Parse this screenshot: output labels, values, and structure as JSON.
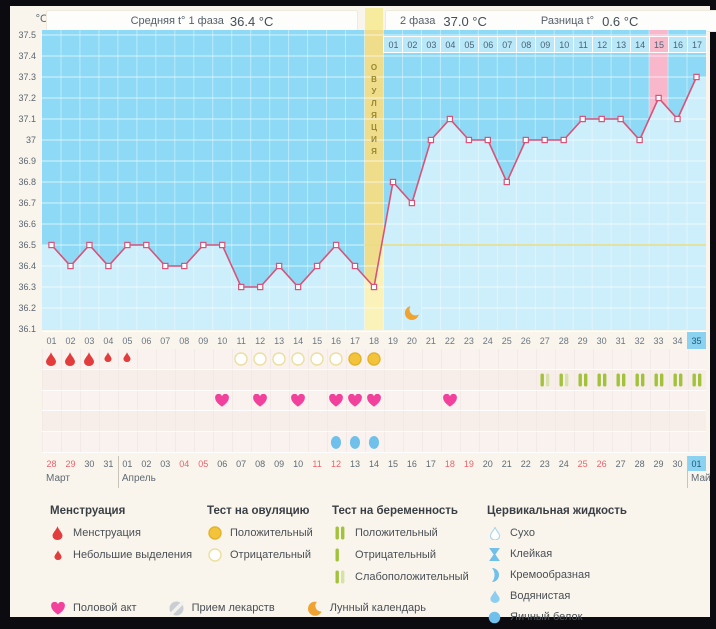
{
  "header": {
    "unit": "°C",
    "avg1_label": "Средняя t° 1 фаза",
    "avg1_value": "36.4 °C",
    "phase2_label": "2 фаза",
    "phase2_value": "37.0 °C",
    "diff_label": "Разница t°",
    "diff_value": "0.6 °C"
  },
  "chart_data": {
    "type": "line",
    "title": "Basal body temperature cycle chart",
    "ylabel": "°C",
    "ylim": [
      36.1,
      37.5
    ],
    "yticks": [
      "37.5",
      "37.4",
      "37.3",
      "37.2",
      "37.1",
      "37",
      "36.9",
      "36.8",
      "36.7",
      "36.6",
      "36.5",
      "36.4",
      "36.3",
      "36.2",
      "36.1"
    ],
    "categories": [
      "01",
      "02",
      "03",
      "04",
      "05",
      "06",
      "07",
      "08",
      "09",
      "10",
      "11",
      "12",
      "13",
      "14",
      "15",
      "16",
      "17",
      "18",
      "19",
      "20",
      "21",
      "22",
      "23",
      "24",
      "25",
      "26",
      "27",
      "28",
      "29",
      "30",
      "31",
      "32",
      "33",
      "34",
      "35"
    ],
    "values": [
      36.5,
      36.4,
      36.5,
      36.4,
      36.5,
      36.5,
      36.4,
      36.4,
      36.5,
      36.5,
      36.3,
      36.3,
      36.4,
      36.3,
      36.4,
      36.5,
      36.4,
      36.3,
      36.8,
      36.7,
      37.0,
      37.1,
      37.0,
      37.0,
      36.8,
      37.0,
      37.0,
      37.0,
      37.1,
      37.1,
      37.1,
      37.0,
      37.2,
      37.1,
      37.3
    ],
    "phase2_day_labels": [
      "01",
      "02",
      "03",
      "04",
      "05",
      "06",
      "07",
      "08",
      "09",
      "10",
      "11",
      "12",
      "13",
      "14",
      "15",
      "16",
      "17"
    ],
    "ovulation_day": 18,
    "ovulation_label": "ОВУЛЯЦИЯ",
    "highlighted_phase2_label": "15",
    "highlighted_cycle_day": 33,
    "coverline": 36.5,
    "moon_day": 20,
    "today_day": 35,
    "grid": true
  },
  "symbols": {
    "menstruation": [
      {
        "day": 1,
        "size": "large"
      },
      {
        "day": 2,
        "size": "large"
      },
      {
        "day": 3,
        "size": "large"
      },
      {
        "day": 4,
        "size": "small"
      },
      {
        "day": 5,
        "size": "small"
      }
    ],
    "ovulation_tests": [
      {
        "day": 11,
        "result": "negative"
      },
      {
        "day": 12,
        "result": "negative"
      },
      {
        "day": 13,
        "result": "negative"
      },
      {
        "day": 14,
        "result": "negative"
      },
      {
        "day": 15,
        "result": "negative"
      },
      {
        "day": 16,
        "result": "negative"
      },
      {
        "day": 17,
        "result": "positive"
      },
      {
        "day": 18,
        "result": "positive"
      }
    ],
    "pregnancy_tests": [
      {
        "day": 27,
        "result": "weak"
      },
      {
        "day": 28,
        "result": "weak"
      },
      {
        "day": 29,
        "result": "positive"
      },
      {
        "day": 30,
        "result": "positive"
      },
      {
        "day": 31,
        "result": "positive"
      },
      {
        "day": 32,
        "result": "positive"
      },
      {
        "day": 33,
        "result": "positive"
      },
      {
        "day": 34,
        "result": "positive"
      },
      {
        "day": 35,
        "result": "positive"
      }
    ],
    "intercourse_days": [
      10,
      12,
      14,
      16,
      17,
      18,
      22
    ],
    "medication_days": [],
    "cervical_fluid": [
      {
        "day": 16,
        "type": "eggwhite"
      },
      {
        "day": 17,
        "type": "eggwhite"
      },
      {
        "day": 18,
        "type": "eggwhite"
      }
    ]
  },
  "calendar": {
    "dates": [
      {
        "label": "28",
        "weekend": true
      },
      {
        "label": "29",
        "weekend": true
      },
      {
        "label": "30",
        "weekend": false
      },
      {
        "label": "31",
        "weekend": false
      },
      {
        "label": "01",
        "weekend": false
      },
      {
        "label": "02",
        "weekend": false
      },
      {
        "label": "03",
        "weekend": false
      },
      {
        "label": "04",
        "weekend": true
      },
      {
        "label": "05",
        "weekend": true
      },
      {
        "label": "06",
        "weekend": false
      },
      {
        "label": "07",
        "weekend": false
      },
      {
        "label": "08",
        "weekend": false
      },
      {
        "label": "09",
        "weekend": false
      },
      {
        "label": "10",
        "weekend": false
      },
      {
        "label": "11",
        "weekend": true
      },
      {
        "label": "12",
        "weekend": true
      },
      {
        "label": "13",
        "weekend": false
      },
      {
        "label": "14",
        "weekend": false
      },
      {
        "label": "15",
        "weekend": false
      },
      {
        "label": "16",
        "weekend": false
      },
      {
        "label": "17",
        "weekend": false
      },
      {
        "label": "18",
        "weekend": true
      },
      {
        "label": "19",
        "weekend": true
      },
      {
        "label": "20",
        "weekend": false
      },
      {
        "label": "21",
        "weekend": false
      },
      {
        "label": "22",
        "weekend": false
      },
      {
        "label": "23",
        "weekend": false
      },
      {
        "label": "24",
        "weekend": false
      },
      {
        "label": "25",
        "weekend": true
      },
      {
        "label": "26",
        "weekend": true
      },
      {
        "label": "27",
        "weekend": false
      },
      {
        "label": "28",
        "weekend": false
      },
      {
        "label": "29",
        "weekend": false
      },
      {
        "label": "30",
        "weekend": false
      },
      {
        "label": "01",
        "weekend": false,
        "today": true
      }
    ],
    "months": [
      {
        "name": "Март",
        "start_col": 1
      },
      {
        "name": "Апрель",
        "start_col": 5
      },
      {
        "name": "Май",
        "start_col": 35
      }
    ]
  },
  "legend": {
    "menstruation": {
      "title": "Менструация",
      "items": [
        {
          "icon": "drop-large",
          "label": "Менструация"
        },
        {
          "icon": "drop-small",
          "label": "Небольшие выделения"
        }
      ]
    },
    "ovulation_test": {
      "title": "Тест на овуляцию",
      "items": [
        {
          "icon": "test-positive",
          "label": "Положительный"
        },
        {
          "icon": "test-negative",
          "label": "Отрицательный"
        }
      ]
    },
    "pregnancy_test": {
      "title": "Тест на беременность",
      "items": [
        {
          "icon": "preg-positive",
          "label": "Положительный"
        },
        {
          "icon": "preg-negative",
          "label": "Отрицательный"
        },
        {
          "icon": "preg-weak",
          "label": "Слабоположительный"
        }
      ]
    },
    "cervical": {
      "title": "Цервикальная жидкость",
      "items": [
        {
          "icon": "cf-dry",
          "label": "Сухо"
        },
        {
          "icon": "cf-sticky",
          "label": "Клейкая"
        },
        {
          "icon": "cf-creamy",
          "label": "Кремообразная"
        },
        {
          "icon": "cf-watery",
          "label": "Водянистая"
        },
        {
          "icon": "cf-eggwhite",
          "label": "Яичный белок"
        }
      ]
    },
    "extra": [
      {
        "icon": "heart",
        "label": "Половой акт"
      },
      {
        "icon": "pill",
        "label": "Прием лекарств"
      },
      {
        "icon": "moon",
        "label": "Лунный календарь"
      }
    ]
  },
  "colors": {
    "curve": "#d85378",
    "chart_upper": "#8edaf6",
    "chart_lower": "#cdeefb",
    "ovul_upper": "#f0dd8c",
    "ovul_lower": "#fbf2ba",
    "pink_column": "#f8b7ca",
    "day_cell": "#b9e8f8",
    "today": "#8ad2f0",
    "coverline": "#e8de82",
    "drop": "#e23c3c",
    "test_yellow": "#f3c33c",
    "test_outline": "#ecdf9e",
    "green": "#a2c23a",
    "green_pale": "#d6e2a8",
    "heart": "#f2419c",
    "cf_blue": "#6fc0ea",
    "moon": "#f0a330",
    "weekend": "#e8636e"
  }
}
